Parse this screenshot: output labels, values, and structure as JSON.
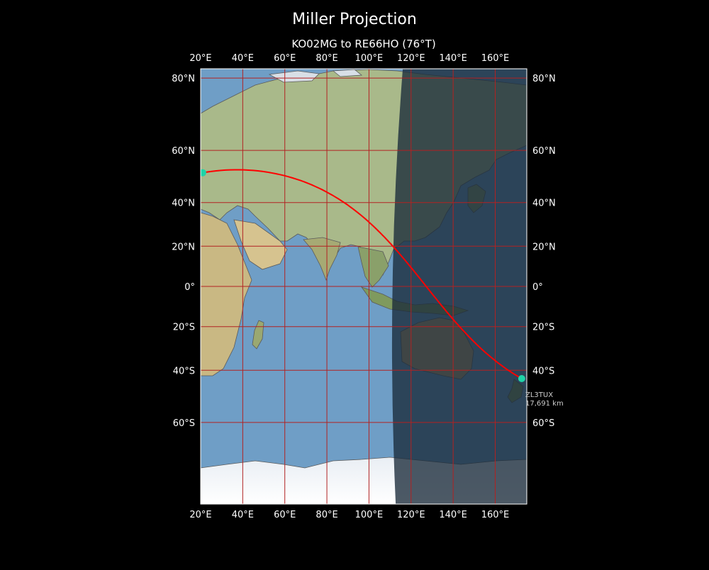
{
  "figure": {
    "title": "Miller Projection",
    "subtitle": "KO02MG to RE66HO (76°T)"
  },
  "map": {
    "projection": "Miller",
    "lon_range": [
      20,
      175
    ],
    "lat_range": [
      -82,
      82
    ],
    "lon_ticks": [
      20,
      40,
      60,
      80,
      100,
      120,
      140,
      160
    ],
    "lon_tick_labels": [
      "20°E",
      "40°E",
      "60°E",
      "80°E",
      "100°E",
      "120°E",
      "140°E",
      "160°E"
    ],
    "lat_ticks": [
      80,
      60,
      40,
      20,
      0,
      -20,
      -40,
      -60
    ],
    "lat_tick_labels": [
      "80°N",
      "60°N",
      "40°N",
      "20°N",
      "0°",
      "20°S",
      "40°S",
      "60°S"
    ],
    "gridline_color": "#b22222",
    "ocean_color": "#6f9ec6",
    "night_shade_from_lon": 110,
    "night_shade_color": "#1a2a3a"
  },
  "route": {
    "start": {
      "lat": 52,
      "lon": 21
    },
    "end": {
      "lat": -43.5,
      "lon": 172.6
    },
    "color": "#ff0000",
    "endpoint_color": "#1fd4a8",
    "end_callsign": "ZL3TUX",
    "end_distance": "17,691 km"
  }
}
